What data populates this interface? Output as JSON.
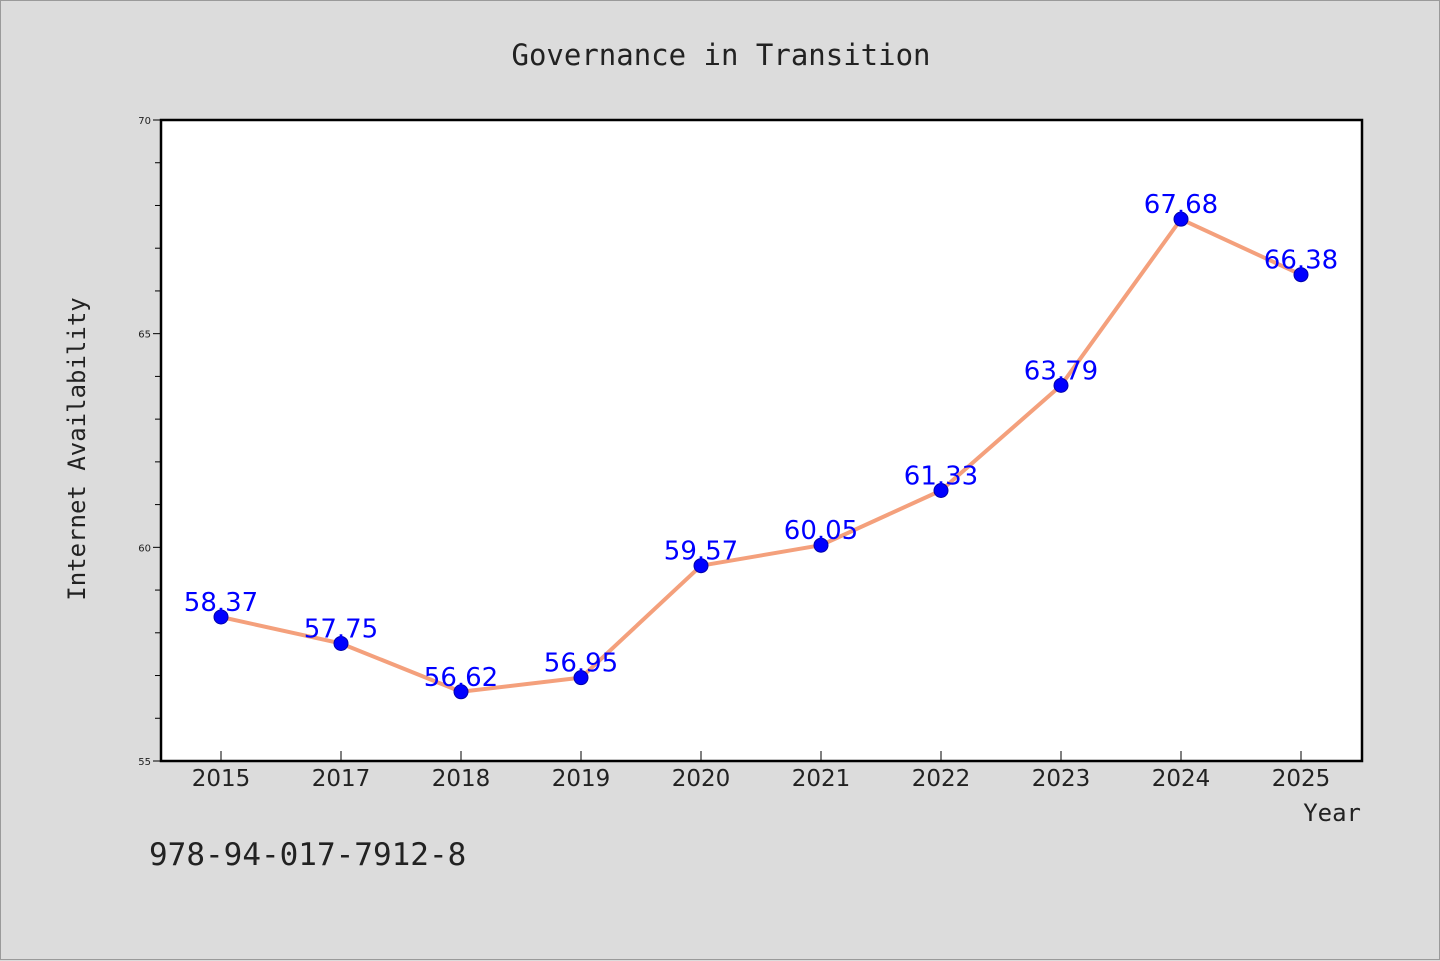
{
  "colors": {
    "background": "#dcdcdc",
    "plot_background": "#ffffff",
    "line": "#f4a07c",
    "marker": "#0000ff",
    "data_label": "#0000ff",
    "text": "#222222"
  },
  "chart_data": {
    "type": "line",
    "title": "Governance in Transition",
    "xlabel": "Year",
    "ylabel": "Internet Availability",
    "categories": [
      "2015",
      "2017",
      "2018",
      "2019",
      "2020",
      "2021",
      "2022",
      "2023",
      "2024",
      "2025"
    ],
    "series": [
      {
        "values": [
          58.37,
          57.75,
          56.62,
          56.95,
          59.57,
          60.05,
          61.33,
          63.79,
          67.68,
          66.38
        ],
        "labels": [
          "58.37",
          "57.75",
          "56.62",
          "56.95",
          "59.57",
          "60.05",
          "61.33",
          "63.79",
          "67.68",
          "66.38"
        ]
      }
    ],
    "ylim": [
      55,
      70
    ],
    "yticks": [
      "55",
      "60",
      "65",
      "70"
    ],
    "y_minor_step": 1,
    "grid": false,
    "legend": "none"
  },
  "footer": {
    "isbn": "978-94-017-7912-8"
  }
}
